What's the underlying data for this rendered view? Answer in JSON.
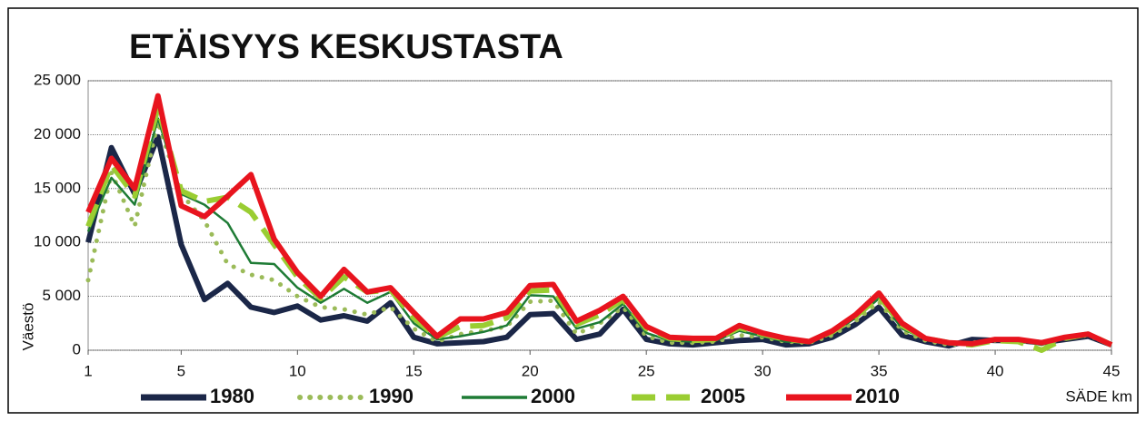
{
  "chart_data": {
    "type": "line",
    "title": "ETÄISYYS KESKUSTASTA",
    "ylabel": "Väestö",
    "xlabel": "SÄDE km",
    "x": [
      1,
      2,
      3,
      4,
      5,
      6,
      7,
      8,
      9,
      10,
      11,
      12,
      13,
      14,
      15,
      16,
      17,
      18,
      19,
      20,
      21,
      22,
      23,
      24,
      25,
      26,
      27,
      28,
      29,
      30,
      31,
      32,
      33,
      34,
      35,
      36,
      37,
      38,
      39,
      40,
      41,
      42,
      43,
      44,
      45
    ],
    "xlim": [
      1,
      45
    ],
    "xticks": [
      1,
      5,
      10,
      15,
      20,
      25,
      30,
      35,
      40,
      45
    ],
    "ylim": [
      0,
      25000
    ],
    "yticks": [
      0,
      {
        "value": 5000,
        "label": "5 000"
      },
      {
        "value": 10000,
        "label": "10 000"
      },
      {
        "value": 15000,
        "label": "15 000"
      },
      {
        "value": 20000,
        "label": "20 000"
      },
      {
        "value": 25000,
        "label": "25 000"
      }
    ],
    "grid": true,
    "legend": "bottom",
    "series": [
      {
        "name": "1980",
        "color": "#1b2748",
        "dash": "solid",
        "values": [
          10000,
          18800,
          14500,
          19800,
          9800,
          4700,
          6200,
          4000,
          3500,
          4100,
          2800,
          3200,
          2700,
          4400,
          1200,
          600,
          700,
          800,
          1200,
          3300,
          3400,
          1000,
          1500,
          3800,
          1000,
          600,
          500,
          700,
          900,
          1000,
          500,
          600,
          1200,
          2400,
          4000,
          1400,
          800,
          400,
          1000,
          900,
          900,
          700,
          1000,
          1300,
          500
        ]
      },
      {
        "name": "1990",
        "color": "#9bbb59",
        "dash": "dotted",
        "values": [
          6500,
          16500,
          11500,
          21200,
          14500,
          12000,
          8000,
          7000,
          6500,
          5000,
          4000,
          3800,
          3300,
          4000,
          2000,
          800,
          1500,
          1800,
          2200,
          4500,
          4600,
          1500,
          2500,
          4000,
          1300,
          700,
          700,
          800,
          1400,
          1200,
          800,
          700,
          1400,
          2700,
          4500,
          1800,
          900,
          500,
          700,
          900,
          900,
          600,
          1100,
          1400,
          500
        ]
      },
      {
        "name": "2000",
        "color": "#1e7b35",
        "dash": "solid",
        "values": [
          11000,
          16000,
          13500,
          21500,
          14500,
          13500,
          11800,
          8100,
          8000,
          5800,
          4400,
          5700,
          4400,
          5400,
          2500,
          1000,
          1300,
          1700,
          2300,
          5100,
          5000,
          2000,
          2600,
          4300,
          1600,
          900,
          800,
          900,
          1800,
          1300,
          800,
          700,
          1600,
          3000,
          4800,
          2000,
          1000,
          600,
          700,
          900,
          900,
          500,
          1100,
          1400,
          500
        ]
      },
      {
        "name": "2005",
        "color": "#9acd32",
        "dash": "dashed",
        "values": [
          11500,
          17200,
          14300,
          22500,
          14800,
          13800,
          14200,
          12800,
          9800,
          6800,
          4800,
          6800,
          5400,
          5600,
          3000,
          1200,
          2200,
          2300,
          3000,
          5500,
          5600,
          2400,
          3300,
          4700,
          2000,
          1100,
          900,
          1000,
          2100,
          1500,
          1000,
          800,
          1700,
          3100,
          5000,
          2300,
          1100,
          700,
          500,
          900,
          800,
          0,
          1100,
          1500,
          500
        ]
      },
      {
        "name": "2010",
        "color": "#e8141e",
        "dash": "solid",
        "values": [
          12800,
          17800,
          15000,
          23600,
          13400,
          12400,
          14300,
          16300,
          10300,
          7200,
          5000,
          7500,
          5400,
          5800,
          3500,
          1300,
          2900,
          2900,
          3500,
          6000,
          6100,
          2700,
          3700,
          5000,
          2200,
          1200,
          1100,
          1100,
          2300,
          1600,
          1100,
          800,
          1800,
          3300,
          5300,
          2500,
          1100,
          700,
          600,
          1000,
          1000,
          700,
          1200,
          1500,
          500
        ]
      }
    ]
  }
}
